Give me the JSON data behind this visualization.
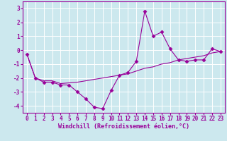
{
  "xlabel": "Windchill (Refroidissement éolien,°C)",
  "x": [
    0,
    1,
    2,
    3,
    4,
    5,
    6,
    7,
    8,
    9,
    10,
    11,
    12,
    13,
    14,
    15,
    16,
    17,
    18,
    19,
    20,
    21,
    22,
    23
  ],
  "y_line1": [
    -0.3,
    -2.0,
    -2.3,
    -2.3,
    -2.5,
    -2.5,
    -3.0,
    -3.5,
    -4.1,
    -4.2,
    -2.9,
    -1.8,
    -1.6,
    -0.8,
    2.8,
    1.0,
    1.3,
    0.1,
    -0.7,
    -0.8,
    -0.7,
    -0.7,
    0.1,
    -0.1
  ],
  "y_line2": [
    -0.3,
    -2.0,
    -2.2,
    -2.2,
    -2.4,
    -2.35,
    -2.3,
    -2.2,
    -2.1,
    -2.0,
    -1.9,
    -1.8,
    -1.7,
    -1.5,
    -1.3,
    -1.2,
    -1.0,
    -0.9,
    -0.7,
    -0.6,
    -0.5,
    -0.4,
    -0.2,
    -0.1
  ],
  "ylim": [
    -4.5,
    3.5
  ],
  "yticks": [
    -4,
    -3,
    -2,
    -1,
    0,
    1,
    2,
    3
  ],
  "xlim": [
    -0.5,
    23.5
  ],
  "bg_color": "#cce8ee",
  "line_color": "#990099",
  "grid_color": "#ffffff",
  "marker": "D",
  "markersize": 2.5,
  "linewidth": 0.8,
  "tick_fontsize": 5.5,
  "xlabel_fontsize": 6.0
}
